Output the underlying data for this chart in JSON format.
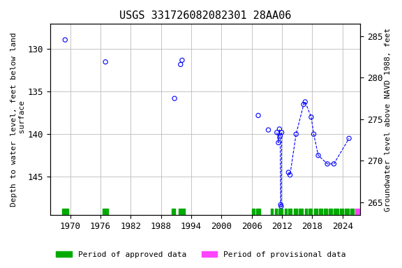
{
  "title": "USGS 331726082082301 28AA06",
  "ylabel_left": "Depth to water level, feet below land\n surface",
  "ylabel_right": "Groundwater level above NAVD 1988, feet",
  "xlim": [
    1966,
    2027.5
  ],
  "ylim_left": [
    149.5,
    127.0
  ],
  "ylim_right": [
    263.5,
    286.5
  ],
  "xticks": [
    1970,
    1976,
    1982,
    1988,
    1994,
    2000,
    2006,
    2012,
    2018,
    2024
  ],
  "yticks_left": [
    130,
    135,
    140,
    145
  ],
  "yticks_right": [
    265,
    270,
    275,
    280,
    285
  ],
  "grid_color": "#bbbbbb",
  "bg_color": "#ffffff",
  "scatter_color": "blue",
  "line_color": "blue",
  "scatter_size": 20,
  "scatter_lw": 0.8,
  "line_lw": 0.8,
  "scatter_points": [
    [
      1969.0,
      128.9
    ],
    [
      1977.0,
      131.5
    ],
    [
      1990.7,
      135.8
    ],
    [
      1991.9,
      131.8
    ],
    [
      1992.2,
      131.3
    ],
    [
      2007.3,
      137.8
    ],
    [
      2009.3,
      139.5
    ],
    [
      2011.0,
      139.8
    ],
    [
      2011.3,
      141.0
    ],
    [
      2011.5,
      139.4
    ],
    [
      2011.65,
      140.2
    ],
    [
      2011.75,
      148.3
    ],
    [
      2011.85,
      148.5
    ],
    [
      2011.95,
      139.8
    ],
    [
      2013.3,
      144.5
    ],
    [
      2013.6,
      144.8
    ],
    [
      2014.8,
      140.0
    ],
    [
      2016.3,
      136.5
    ],
    [
      2016.6,
      136.2
    ],
    [
      2017.8,
      138.0
    ],
    [
      2018.3,
      140.0
    ],
    [
      2019.2,
      142.5
    ],
    [
      2021.0,
      143.5
    ],
    [
      2022.3,
      143.5
    ],
    [
      2025.3,
      140.5
    ]
  ],
  "line_group1": [
    [
      2011.0,
      139.8
    ],
    [
      2011.3,
      141.0
    ],
    [
      2011.5,
      139.4
    ],
    [
      2011.65,
      140.2
    ],
    [
      2011.75,
      148.3
    ],
    [
      2011.85,
      148.5
    ],
    [
      2011.95,
      139.8
    ]
  ],
  "line_group2": [
    [
      2013.3,
      144.5
    ],
    [
      2013.6,
      144.8
    ],
    [
      2014.8,
      140.0
    ],
    [
      2016.3,
      136.5
    ],
    [
      2016.6,
      136.2
    ],
    [
      2017.8,
      138.0
    ],
    [
      2018.3,
      140.0
    ],
    [
      2019.2,
      142.5
    ],
    [
      2021.0,
      143.5
    ],
    [
      2022.3,
      143.5
    ],
    [
      2025.3,
      140.5
    ]
  ],
  "approved_ranges": [
    [
      1968.4,
      1969.6
    ],
    [
      1976.4,
      1977.6
    ],
    [
      1990.2,
      1990.8
    ],
    [
      1991.5,
      1992.8
    ],
    [
      2006.0,
      2006.6
    ],
    [
      2006.9,
      2007.7
    ],
    [
      2009.8,
      2010.2
    ],
    [
      2010.6,
      2011.0
    ],
    [
      2011.3,
      2012.2
    ],
    [
      2012.5,
      2013.0
    ],
    [
      2013.3,
      2014.0
    ],
    [
      2014.3,
      2015.0
    ],
    [
      2015.3,
      2016.2
    ],
    [
      2016.5,
      2017.0
    ],
    [
      2017.3,
      2018.0
    ],
    [
      2018.3,
      2019.0
    ],
    [
      2019.3,
      2020.0
    ],
    [
      2020.3,
      2021.0
    ],
    [
      2021.3,
      2022.0
    ],
    [
      2022.3,
      2023.2
    ],
    [
      2023.5,
      2024.2
    ],
    [
      2024.5,
      2025.3
    ],
    [
      2025.6,
      2026.3
    ]
  ],
  "provisional_ranges": [
    [
      2026.5,
      2027.3
    ]
  ],
  "bar_ymin": 148.8,
  "bar_ymax": 149.5,
  "approved_color": "#00aa00",
  "provisional_color": "#ff44ff",
  "font": "monospace",
  "title_fontsize": 11,
  "axis_fontsize": 8,
  "tick_fontsize": 9,
  "legend_fontsize": 8
}
